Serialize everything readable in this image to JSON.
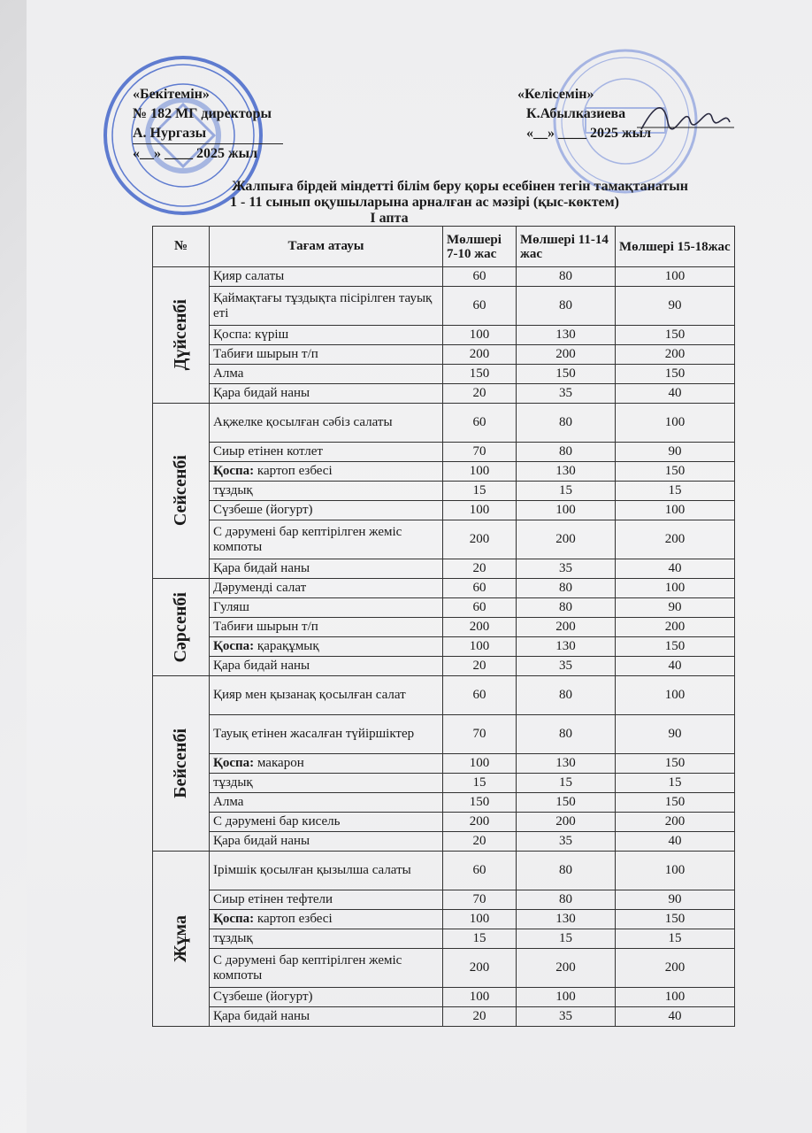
{
  "approve": {
    "title": "«Бекітемін»",
    "line1": "№ 182 МГ директоры",
    "line2": "А. Нургазы",
    "date": "«__» ____ 2025 жыл"
  },
  "agree": {
    "title": "«Келісемін»",
    "line1": "К.Абылказиева",
    "date": "«__» ____ 2025 жыл"
  },
  "stamp_color": "#3a5fc8",
  "title": {
    "line1": "Жалпыға бірдей міндетті білім беру қоры  есебінен тегін тамақтанатын",
    "line2": "1 - 11 сынып оқушыларына арналған ас мәзірі (қыс-көктем)",
    "week": "I апта"
  },
  "table": {
    "headers": [
      "№",
      "Тағам атауы",
      "Мөлшері 7-10 жас",
      "Мөлшері 11-14 жас",
      "Мөлшері 15-18жас"
    ],
    "days": [
      {
        "day": "Дүйсенбі",
        "rows": [
          {
            "name": "Қияр салаты",
            "v": [
              "60",
              "80",
              "100"
            ]
          },
          {
            "name": "Қаймақтағы тұздықта пісірілген тауық еті",
            "v": [
              "60",
              "80",
              "90"
            ],
            "tall": true
          },
          {
            "name": "Қоспа: күріш",
            "v": [
              "100",
              "130",
              "150"
            ]
          },
          {
            "name": "Табиғи шырын  т/п",
            "v": [
              "200",
              "200",
              "200"
            ]
          },
          {
            "name": "Алма",
            "v": [
              "150",
              "150",
              "150"
            ]
          },
          {
            "name": "Қара бидай наны",
            "v": [
              "20",
              "35",
              "40"
            ]
          }
        ]
      },
      {
        "day": "Сейсенбі",
        "rows": [
          {
            "name": "Ақжелке қосылған сәбіз салаты",
            "v": [
              "60",
              "80",
              "100"
            ],
            "tall": true
          },
          {
            "name": "Сиыр етінен котлет",
            "v": [
              "70",
              "80",
              "90"
            ]
          },
          {
            "bold": "Қоспа:",
            "name": " картоп езбесі",
            "v": [
              "100",
              "130",
              "150"
            ]
          },
          {
            "name": "тұздық",
            "v": [
              "15",
              "15",
              "15"
            ]
          },
          {
            "name": "Сүзбеше (йогурт)",
            "v": [
              "100",
              "100",
              "100"
            ]
          },
          {
            "name": "С дәрумені бар кептірілген жеміс компоты",
            "v": [
              "200",
              "200",
              "200"
            ],
            "tall": true
          },
          {
            "name": "Қара бидай наны",
            "v": [
              "20",
              "35",
              "40"
            ]
          }
        ]
      },
      {
        "day": "Сәрсенбі",
        "rows": [
          {
            "name": "Дәруменді салат",
            "v": [
              "60",
              "80",
              "100"
            ]
          },
          {
            "name": "Гуляш",
            "v": [
              "60",
              "80",
              "90"
            ]
          },
          {
            "name": "Табиғи шырын  т/п",
            "v": [
              "200",
              "200",
              "200"
            ]
          },
          {
            "bold": "Қоспа:",
            "name": " қарақұмық",
            "v": [
              "100",
              "130",
              "150"
            ]
          },
          {
            "name": "Қара бидай наны",
            "v": [
              "20",
              "35",
              "40"
            ]
          }
        ]
      },
      {
        "day": "Бейсенбі",
        "rows": [
          {
            "name": "Қияр мен қызанақ қосылған салат",
            "v": [
              "60",
              "80",
              "100"
            ],
            "tall": true
          },
          {
            "name": "Тауық етінен жасалған түйіршіктер",
            "v": [
              "70",
              "80",
              "90"
            ],
            "tall": true
          },
          {
            "bold": "Қоспа:",
            "name": " макарон",
            "v": [
              "100",
              "130",
              "150"
            ]
          },
          {
            "name": "тұздық",
            "v": [
              "15",
              "15",
              "15"
            ]
          },
          {
            "name": "Алма",
            "v": [
              "150",
              "150",
              "150"
            ]
          },
          {
            "name": "С дәрумені бар кисель",
            "v": [
              "200",
              "200",
              "200"
            ]
          },
          {
            "name": "Қара бидай наны",
            "v": [
              "20",
              "35",
              "40"
            ]
          }
        ]
      },
      {
        "day": "Жұма",
        "rows": [
          {
            "name": "Ірімшік қосылған қызылша салаты",
            "v": [
              "60",
              "80",
              "100"
            ],
            "tall": true
          },
          {
            "name": "Сиыр етінен тефтели",
            "v": [
              "70",
              "80",
              "90"
            ]
          },
          {
            "bold": "Қоспа:",
            "name": " картоп езбесі",
            "v": [
              "100",
              "130",
              "150"
            ]
          },
          {
            "name": "тұздық",
            "v": [
              "15",
              "15",
              "15"
            ]
          },
          {
            "name": "С дәрумені бар кептірілген жеміс компоты",
            "v": [
              "200",
              "200",
              "200"
            ],
            "tall": true
          },
          {
            "name": "Сүзбеше (йогурт)",
            "v": [
              "100",
              "100",
              "100"
            ]
          },
          {
            "name": "Қара бидай наны",
            "v": [
              "20",
              "35",
              "40"
            ]
          }
        ]
      }
    ]
  }
}
